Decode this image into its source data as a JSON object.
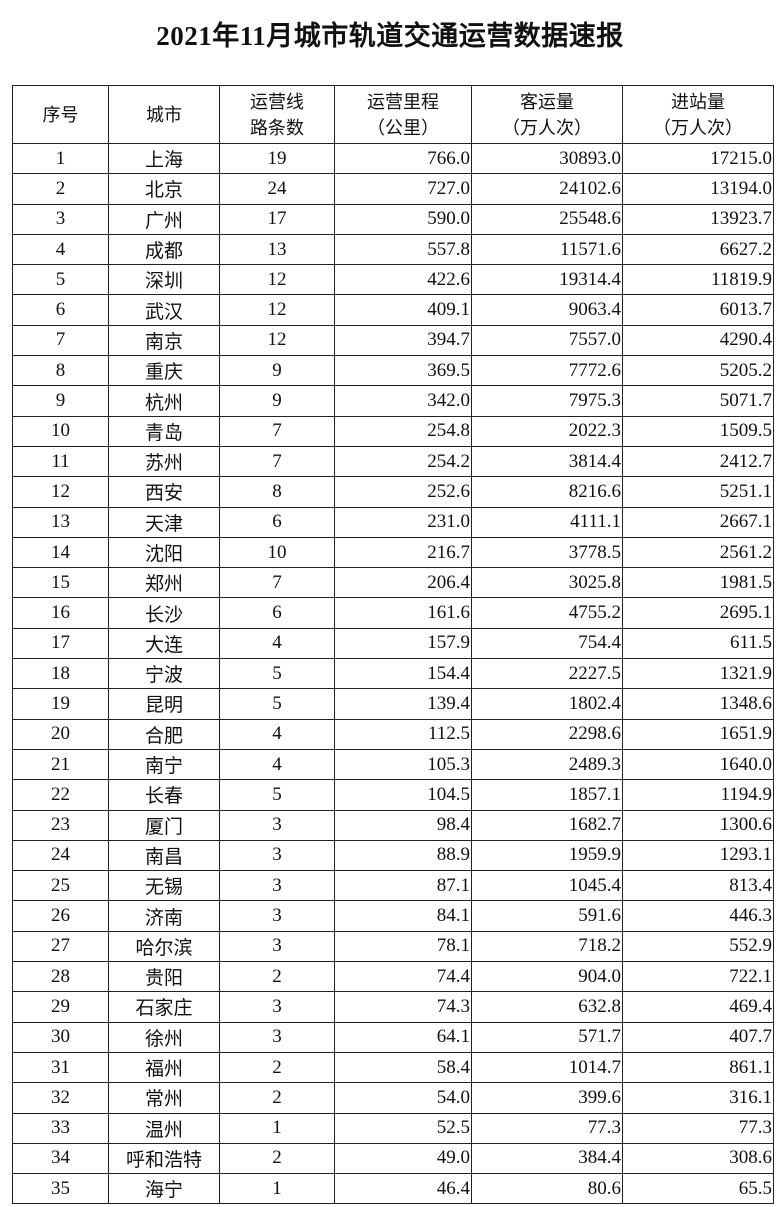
{
  "title": "2021年11月城市轨道交通运营数据速报",
  "headers": [
    {
      "line1": "序号",
      "line2": ""
    },
    {
      "line1": "城市",
      "line2": ""
    },
    {
      "line1": "运营线",
      "line2": "路条数"
    },
    {
      "line1": "运营里程",
      "line2": "（公里）"
    },
    {
      "line1": "客运量",
      "line2": "（万人次）"
    },
    {
      "line1": "进站量",
      "line2": "（万人次）"
    }
  ],
  "rows": [
    [
      "1",
      "上海",
      "19",
      "766.0",
      "30893.0",
      "17215.0"
    ],
    [
      "2",
      "北京",
      "24",
      "727.0",
      "24102.6",
      "13194.0"
    ],
    [
      "3",
      "广州",
      "17",
      "590.0",
      "25548.6",
      "13923.7"
    ],
    [
      "4",
      "成都",
      "13",
      "557.8",
      "11571.6",
      "6627.2"
    ],
    [
      "5",
      "深圳",
      "12",
      "422.6",
      "19314.4",
      "11819.9"
    ],
    [
      "6",
      "武汉",
      "12",
      "409.1",
      "9063.4",
      "6013.7"
    ],
    [
      "7",
      "南京",
      "12",
      "394.7",
      "7557.0",
      "4290.4"
    ],
    [
      "8",
      "重庆",
      "9",
      "369.5",
      "7772.6",
      "5205.2"
    ],
    [
      "9",
      "杭州",
      "9",
      "342.0",
      "7975.3",
      "5071.7"
    ],
    [
      "10",
      "青岛",
      "7",
      "254.8",
      "2022.3",
      "1509.5"
    ],
    [
      "11",
      "苏州",
      "7",
      "254.2",
      "3814.4",
      "2412.7"
    ],
    [
      "12",
      "西安",
      "8",
      "252.6",
      "8216.6",
      "5251.1"
    ],
    [
      "13",
      "天津",
      "6",
      "231.0",
      "4111.1",
      "2667.1"
    ],
    [
      "14",
      "沈阳",
      "10",
      "216.7",
      "3778.5",
      "2561.2"
    ],
    [
      "15",
      "郑州",
      "7",
      "206.4",
      "3025.8",
      "1981.5"
    ],
    [
      "16",
      "长沙",
      "6",
      "161.6",
      "4755.2",
      "2695.1"
    ],
    [
      "17",
      "大连",
      "4",
      "157.9",
      "754.4",
      "611.5"
    ],
    [
      "18",
      "宁波",
      "5",
      "154.4",
      "2227.5",
      "1321.9"
    ],
    [
      "19",
      "昆明",
      "5",
      "139.4",
      "1802.4",
      "1348.6"
    ],
    [
      "20",
      "合肥",
      "4",
      "112.5",
      "2298.6",
      "1651.9"
    ],
    [
      "21",
      "南宁",
      "4",
      "105.3",
      "2489.3",
      "1640.0"
    ],
    [
      "22",
      "长春",
      "5",
      "104.5",
      "1857.1",
      "1194.9"
    ],
    [
      "23",
      "厦门",
      "3",
      "98.4",
      "1682.7",
      "1300.6"
    ],
    [
      "24",
      "南昌",
      "3",
      "88.9",
      "1959.9",
      "1293.1"
    ],
    [
      "25",
      "无锡",
      "3",
      "87.1",
      "1045.4",
      "813.4"
    ],
    [
      "26",
      "济南",
      "3",
      "84.1",
      "591.6",
      "446.3"
    ],
    [
      "27",
      "哈尔滨",
      "3",
      "78.1",
      "718.2",
      "552.9"
    ],
    [
      "28",
      "贵阳",
      "2",
      "74.4",
      "904.0",
      "722.1"
    ],
    [
      "29",
      "石家庄",
      "3",
      "74.3",
      "632.8",
      "469.4"
    ],
    [
      "30",
      "徐州",
      "3",
      "64.1",
      "571.7",
      "407.7"
    ],
    [
      "31",
      "福州",
      "2",
      "58.4",
      "1014.7",
      "861.1"
    ],
    [
      "32",
      "常州",
      "2",
      "54.0",
      "399.6",
      "316.1"
    ],
    [
      "33",
      "温州",
      "1",
      "52.5",
      "77.3",
      "77.3"
    ],
    [
      "34",
      "呼和浩特",
      "2",
      "49.0",
      "384.4",
      "308.6"
    ],
    [
      "35",
      "海宁",
      "1",
      "46.4",
      "80.6",
      "65.5"
    ]
  ]
}
